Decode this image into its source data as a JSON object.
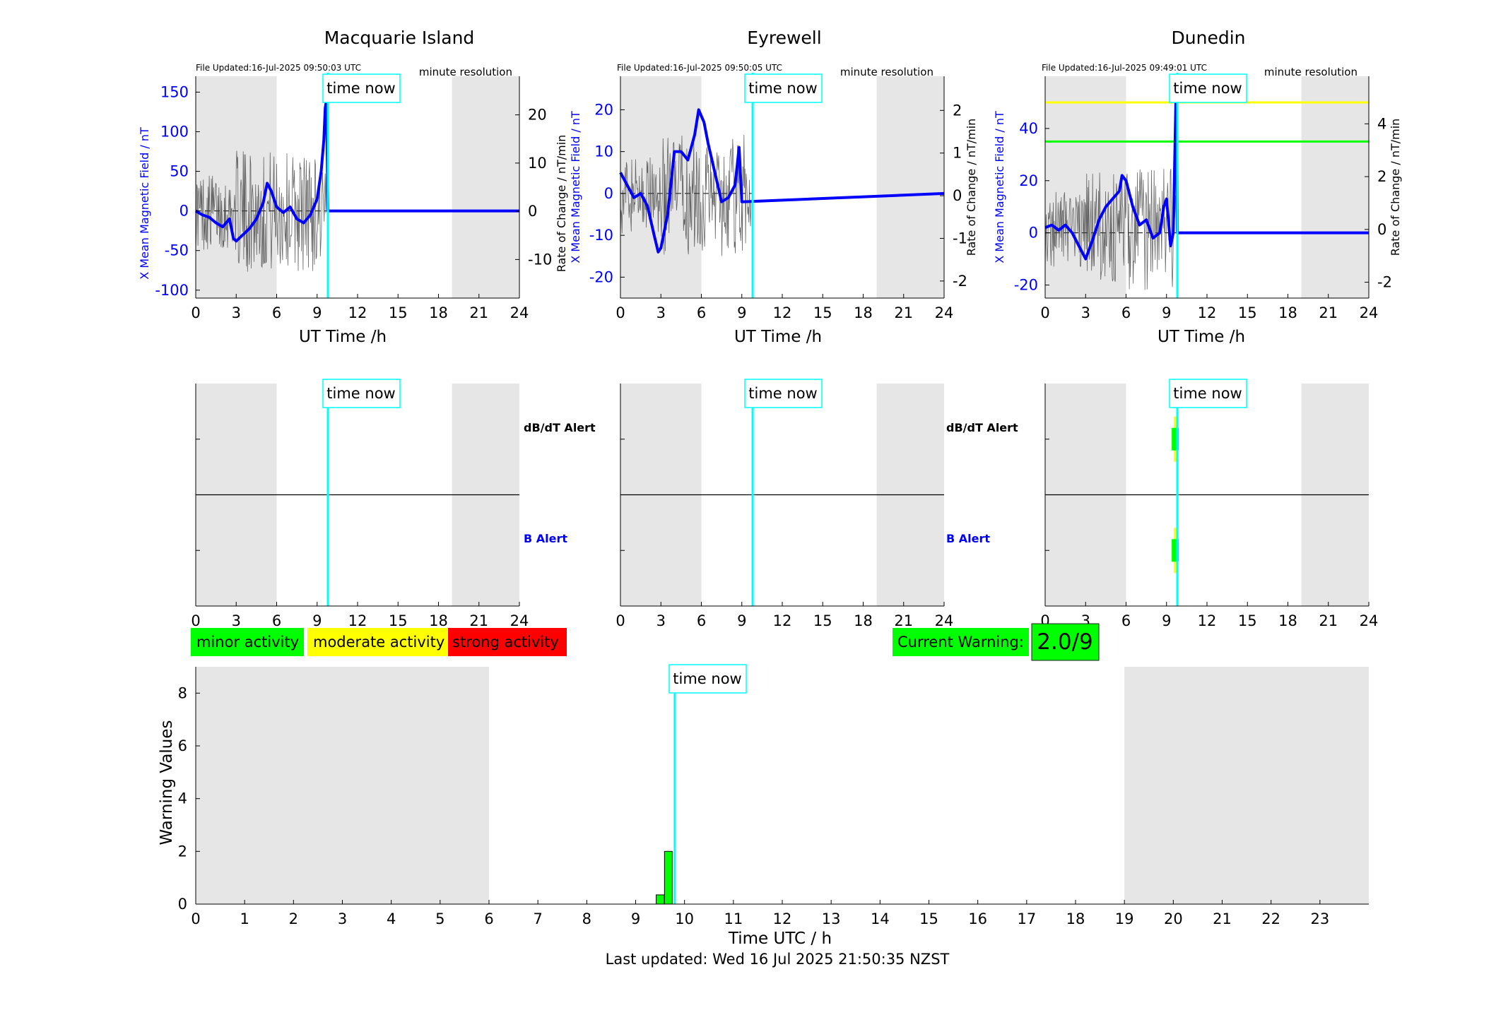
{
  "footer": {
    "last_updated": "Last updated: Wed 16 Jul 2025 21:50:35 NZST"
  },
  "time_now_label": "time now",
  "current_time_h": 9.8,
  "colors": {
    "trace": "#0000ff",
    "rate_trace": "#444444",
    "time_now": "#00ffff",
    "shade": "#e6e6e6",
    "minor": "#00ff00",
    "moderate": "#ffff00",
    "strong": "#ff0000"
  },
  "legend": {
    "minor": "minor activity",
    "moderate": "moderate activity",
    "strong": "strong activity"
  },
  "current_warning": {
    "label": "Current Warning:",
    "value": "2.0/9"
  },
  "chart_data": [
    {
      "type": "line",
      "title": "Macquarie Island",
      "file_updated": "File Updated:16-Jul-2025 09:50:03 UTC",
      "resolution": "minute resolution",
      "xlabel": "UT Time /h",
      "ylabel_left": "X Mean Magnetic Field / nT",
      "ylabel_right": "Rate of Change / nT/min",
      "xlim": [
        0,
        24
      ],
      "ylim_left": [
        -110,
        170
      ],
      "ylim_right": [
        -18,
        28
      ],
      "x_ticks": [
        0,
        3,
        6,
        9,
        12,
        15,
        18,
        21,
        24
      ],
      "y_ticks_left": [
        -100,
        -50,
        0,
        50,
        100,
        150
      ],
      "y_ticks_right": [
        -10,
        0,
        10,
        20
      ],
      "shaded_intervals": [
        [
          0,
          6
        ],
        [
          19,
          24
        ]
      ],
      "series": [
        {
          "axis": "left",
          "x": [
            0,
            0.5,
            1,
            1.5,
            2,
            2.5,
            2.8,
            3,
            3.5,
            4,
            4.5,
            5,
            5.3,
            5.6,
            6,
            6.5,
            7,
            7.5,
            8,
            8.5,
            9,
            9.3,
            9.5,
            9.6,
            9.7,
            9.8,
            10,
            24
          ],
          "y": [
            0,
            -5,
            -8,
            -15,
            -20,
            -10,
            -35,
            -38,
            -30,
            -22,
            -10,
            10,
            35,
            25,
            5,
            -2,
            5,
            -10,
            -15,
            -5,
            15,
            50,
            90,
            130,
            140,
            0,
            0,
            0
          ]
        }
      ]
    },
    {
      "type": "line",
      "title": "Eyrewell",
      "file_updated": "File Updated:16-Jul-2025 09:50:05 UTC",
      "resolution": "minute resolution",
      "xlabel": "UT Time /h",
      "ylabel_left": "X Mean Magnetic Field / nT",
      "ylabel_right": "Rate of Change / nT/min",
      "xlim": [
        0,
        24
      ],
      "ylim_left": [
        -25,
        28
      ],
      "ylim_right": [
        -2.4,
        2.8
      ],
      "x_ticks": [
        0,
        3,
        6,
        9,
        12,
        15,
        18,
        21,
        24
      ],
      "y_ticks_left": [
        -20,
        -10,
        0,
        10,
        20
      ],
      "y_ticks_right": [
        -2,
        -1,
        0,
        1,
        2
      ],
      "shaded_intervals": [
        [
          0,
          6
        ],
        [
          19,
          24
        ]
      ],
      "series": [
        {
          "axis": "left",
          "x": [
            0,
            0.5,
            1,
            1.5,
            2,
            2.5,
            2.8,
            3,
            3.5,
            4,
            4.5,
            5,
            5.5,
            5.8,
            6.2,
            6.5,
            7,
            7.5,
            8,
            8.5,
            8.8,
            9,
            24
          ],
          "y": [
            5,
            2,
            -1,
            0,
            -3,
            -10,
            -14,
            -13,
            -5,
            10,
            10,
            8,
            14,
            20,
            17,
            12,
            5,
            -2,
            -1,
            2,
            11,
            -2,
            0
          ]
        }
      ]
    },
    {
      "type": "line",
      "title": "Dunedin",
      "file_updated": "File Updated:16-Jul-2025 09:49:01 UTC",
      "resolution": "minute resolution",
      "xlabel": "UT Time /h",
      "ylabel_left": "X Mean Magnetic Field / nT",
      "ylabel_right": "Rate of Change / nT/min",
      "xlim": [
        0,
        24
      ],
      "ylim_left": [
        -25,
        60
      ],
      "ylim_right": [
        -2.6,
        5.8
      ],
      "x_ticks": [
        0,
        3,
        6,
        9,
        12,
        15,
        18,
        21,
        24
      ],
      "y_ticks_left": [
        -20,
        0,
        20,
        40
      ],
      "y_ticks_right": [
        -2,
        0,
        2,
        4
      ],
      "shaded_intervals": [
        [
          0,
          6
        ],
        [
          19,
          24
        ]
      ],
      "thresholds": [
        {
          "value": 50,
          "color": "#ffff00"
        },
        {
          "value": 35,
          "color": "#00ff00"
        }
      ],
      "series": [
        {
          "axis": "left",
          "x": [
            0,
            0.5,
            1,
            1.5,
            2,
            2.5,
            3,
            3.5,
            4,
            4.5,
            5,
            5.5,
            5.7,
            6,
            6.5,
            7,
            7.5,
            8,
            8.5,
            8.8,
            9,
            9.3,
            9.5,
            9.7,
            9.75,
            9.8,
            10,
            24
          ],
          "y": [
            2,
            3,
            1,
            3,
            0,
            -5,
            -10,
            -3,
            5,
            10,
            13,
            16,
            22,
            20,
            10,
            3,
            5,
            -2,
            0,
            10,
            13,
            -5,
            0,
            52,
            55,
            0,
            0,
            0
          ]
        }
      ]
    },
    {
      "type": "bar",
      "title": "",
      "row_labels": [
        "dB/dT Alert",
        "B Alert"
      ],
      "xlim": [
        0,
        24
      ],
      "x_ticks": [
        0,
        3,
        6,
        9,
        12,
        15,
        18,
        21,
        24
      ],
      "shaded_intervals": [
        [
          0,
          6
        ],
        [
          19,
          24
        ]
      ],
      "alerts": []
    },
    {
      "type": "bar",
      "title": "",
      "row_labels": [
        "dB/dT Alert",
        "B Alert"
      ],
      "xlim": [
        0,
        24
      ],
      "x_ticks": [
        0,
        3,
        6,
        9,
        12,
        15,
        18,
        21,
        24
      ],
      "shaded_intervals": [
        [
          0,
          6
        ],
        [
          19,
          24
        ]
      ],
      "alerts": []
    },
    {
      "type": "bar",
      "title": "",
      "row_labels": [
        "dB/dT Alert",
        "B Alert"
      ],
      "xlim": [
        0,
        24
      ],
      "x_ticks": [
        0,
        3,
        6,
        9,
        12,
        15,
        18,
        21,
        24
      ],
      "shaded_intervals": [
        [
          0,
          6
        ],
        [
          19,
          24
        ]
      ],
      "alerts": [
        {
          "row": "dB/dT Alert",
          "x": 9.7,
          "level": "minor"
        },
        {
          "row": "B Alert",
          "x": 9.7,
          "level": "minor"
        }
      ]
    },
    {
      "type": "bar",
      "title": "",
      "xlabel": "Time UTC / h",
      "ylabel": "Warning Values",
      "xlim": [
        0,
        24
      ],
      "ylim": [
        0,
        9
      ],
      "x_ticks": [
        0,
        1,
        2,
        3,
        4,
        5,
        6,
        7,
        8,
        9,
        10,
        11,
        12,
        13,
        14,
        15,
        16,
        17,
        18,
        19,
        20,
        21,
        22,
        23
      ],
      "y_ticks": [
        0,
        2,
        4,
        6,
        8
      ],
      "shaded_intervals": [
        [
          0,
          6
        ],
        [
          19,
          24
        ]
      ],
      "bars": [
        {
          "x": 9.5,
          "value": 0.35,
          "level": "minor"
        },
        {
          "x": 9.67,
          "value": 2.0,
          "level": "minor"
        }
      ]
    }
  ]
}
